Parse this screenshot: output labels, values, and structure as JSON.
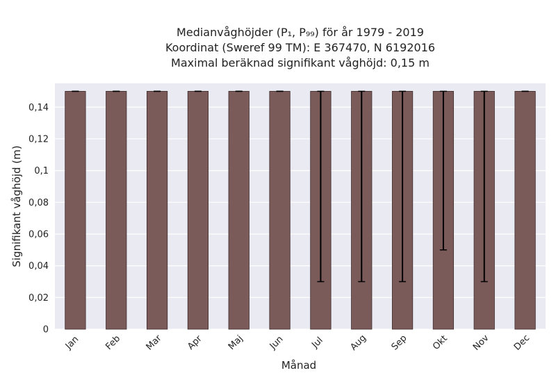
{
  "chart_data": {
    "type": "bar",
    "title_lines": [
      "Medianvåghöjder (P₁, P₉₉) för år 1979 - 2019",
      "Koordinat (Sweref 99 TM): E 367470, N 6192016",
      "Maximal beräknad signifikant våghöjd: 0,15 m"
    ],
    "xlabel": "Månad",
    "ylabel": "Signifikant våghöjd (m)",
    "categories": [
      "Jan",
      "Feb",
      "Mar",
      "Apr",
      "Maj",
      "Jun",
      "Jul",
      "Aug",
      "Sep",
      "Okt",
      "Nov",
      "Dec"
    ],
    "values": [
      0.15,
      0.15,
      0.15,
      0.15,
      0.15,
      0.15,
      0.15,
      0.15,
      0.15,
      0.15,
      0.15,
      0.15
    ],
    "error_low": [
      0.15,
      0.15,
      0.15,
      0.15,
      0.15,
      0.15,
      0.03,
      0.03,
      0.03,
      0.05,
      0.03,
      0.15
    ],
    "error_high": [
      0.15,
      0.15,
      0.15,
      0.15,
      0.15,
      0.15,
      0.15,
      0.15,
      0.15,
      0.15,
      0.15,
      0.15
    ],
    "ylim": [
      0,
      0.155
    ],
    "yticks": [
      0,
      0.02,
      0.04,
      0.06,
      0.08,
      0.1,
      0.12,
      0.14
    ],
    "ytick_labels": [
      "0",
      "0,02",
      "0,04",
      "0,06",
      "0,08",
      "0,1",
      "0,12",
      "0,14"
    ],
    "grid": true,
    "colors": {
      "bar": "#7b5a5a",
      "bar_edge": "#3e2c2c",
      "error": "#000000",
      "plot_bg": "#eaeaf2",
      "grid": "#ffffff"
    }
  }
}
